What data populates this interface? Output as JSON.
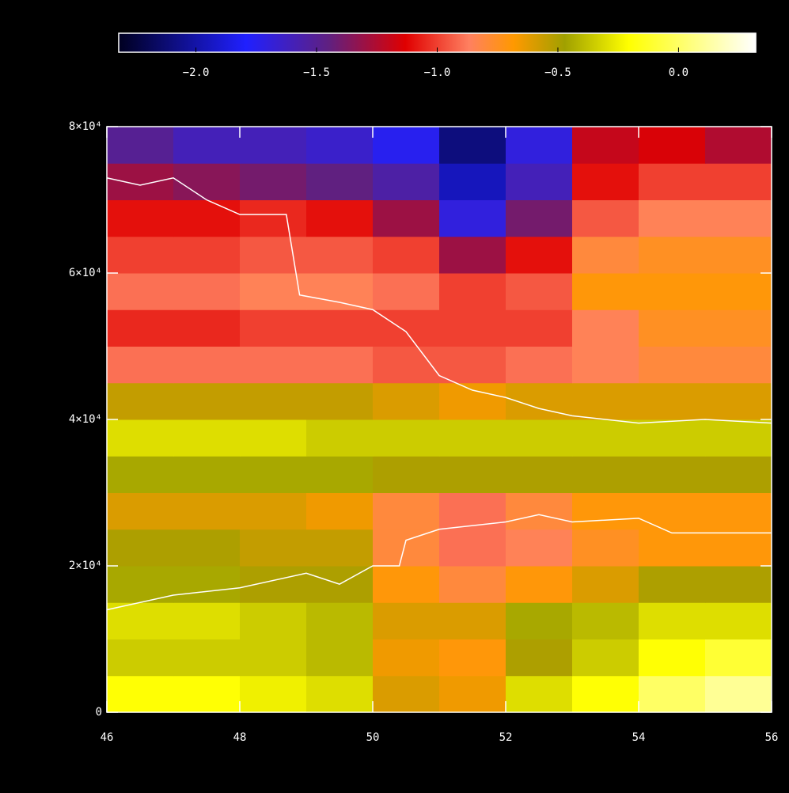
{
  "chart_data": {
    "type": "heatmap",
    "xlim": [
      46,
      56
    ],
    "ylim": [
      0,
      80000
    ],
    "xticks": [
      46,
      48,
      50,
      52,
      54,
      56
    ],
    "yticks": [
      0,
      {
        "value": 20000,
        "label": "2×10⁴"
      },
      {
        "value": 40000,
        "label": "4×10⁴"
      },
      {
        "value": 60000,
        "label": "6×10⁴"
      },
      {
        "value": 80000,
        "label": "8×10⁴"
      }
    ],
    "zlim": [
      -2.32,
      0.32
    ],
    "cticks": [
      {
        "value": -2,
        "label": "−2.0"
      },
      {
        "value": -1.5,
        "label": "−1.5"
      },
      {
        "value": -1,
        "label": "−1.0"
      },
      {
        "value": -0.5,
        "label": "−0.5"
      },
      {
        "value": 0,
        "label": "0.0"
      }
    ],
    "colorscale": [
      [
        0,
        "#000020"
      ],
      [
        0.2,
        "#2020ff"
      ],
      [
        0.33,
        "#602080"
      ],
      [
        0.45,
        "#e00000"
      ],
      [
        0.55,
        "#ff8060"
      ],
      [
        0.62,
        "#ff9900"
      ],
      [
        0.7,
        "#a0a000"
      ],
      [
        0.8,
        "#ffff00"
      ],
      [
        1,
        "#ffffff"
      ]
    ],
    "x_edges": [
      46,
      47,
      48,
      49,
      50,
      51,
      52,
      53,
      54,
      55,
      56
    ],
    "y_edges": [
      0,
      5000,
      10000,
      15000,
      20000,
      25000,
      30000,
      35000,
      40000,
      45000,
      50000,
      55000,
      60000,
      65000,
      70000,
      75000,
      80000
    ],
    "z": [
      [
        -0.2,
        -0.2,
        -0.25,
        -0.3,
        -0.6,
        -0.65,
        -0.3,
        -0.2,
        0.0,
        0.1
      ],
      [
        -0.35,
        -0.35,
        -0.35,
        -0.4,
        -0.65,
        -0.7,
        -0.5,
        -0.35,
        -0.2,
        -0.1
      ],
      [
        -0.3,
        -0.3,
        -0.35,
        -0.4,
        -0.6,
        -0.6,
        -0.45,
        -0.4,
        -0.3,
        -0.3
      ],
      [
        -0.45,
        -0.45,
        -0.5,
        -0.5,
        -0.7,
        -0.8,
        -0.7,
        -0.6,
        -0.5,
        -0.5
      ],
      [
        -0.5,
        -0.5,
        -0.55,
        -0.55,
        -0.8,
        -0.9,
        -0.85,
        -0.75,
        -0.7,
        -0.7
      ],
      [
        -0.6,
        -0.6,
        -0.6,
        -0.65,
        -0.8,
        -0.9,
        -0.8,
        -0.7,
        -0.7,
        -0.7
      ],
      [
        -0.45,
        -0.45,
        -0.45,
        -0.45,
        -0.5,
        -0.5,
        -0.5,
        -0.5,
        -0.5,
        -0.5
      ],
      [
        -0.3,
        -0.3,
        -0.3,
        -0.35,
        -0.35,
        -0.35,
        -0.35,
        -0.35,
        -0.35,
        -0.35
      ],
      [
        -0.55,
        -0.55,
        -0.55,
        -0.55,
        -0.6,
        -0.65,
        -0.6,
        -0.6,
        -0.6,
        -0.6
      ],
      [
        -0.9,
        -0.9,
        -0.9,
        -0.9,
        -0.95,
        -0.95,
        -0.9,
        -0.85,
        -0.8,
        -0.8
      ],
      [
        -1.05,
        -1.05,
        -1.0,
        -1.0,
        -1.0,
        -1.0,
        -1.0,
        -0.85,
        -0.75,
        -0.75
      ],
      [
        -0.9,
        -0.9,
        -0.85,
        -0.85,
        -0.9,
        -1.0,
        -0.95,
        -0.7,
        -0.7,
        -0.7
      ],
      [
        -1.0,
        -1.0,
        -0.95,
        -0.95,
        -1.0,
        -1.3,
        -1.1,
        -0.8,
        -0.75,
        -0.75
      ],
      [
        -1.1,
        -1.1,
        -1.05,
        -1.1,
        -1.3,
        -1.7,
        -1.4,
        -0.95,
        -0.85,
        -0.85
      ],
      [
        -1.3,
        -1.35,
        -1.4,
        -1.45,
        -1.55,
        -1.95,
        -1.6,
        -1.1,
        -1.0,
        -1.0
      ],
      [
        -1.5,
        -1.6,
        -1.6,
        -1.65,
        -1.75,
        -2.1,
        -1.7,
        -1.2,
        -1.15,
        -1.25
      ]
    ],
    "lines": [
      {
        "color": "#ffffff",
        "x": [
          46,
          46.5,
          47,
          47.5,
          48,
          48.7,
          48.9,
          49.5,
          50,
          50.5,
          51,
          51.5,
          52,
          52.5,
          53,
          54,
          55,
          56
        ],
        "y": [
          73000,
          72000,
          73000,
          70000,
          68000,
          68000,
          57000,
          56000,
          55000,
          52000,
          46000,
          44000,
          43000,
          41500,
          40500,
          39500,
          40000,
          39500
        ]
      },
      {
        "color": "#ffffff",
        "x": [
          46,
          47,
          48,
          49,
          49.5,
          50,
          50.4,
          50.5,
          51,
          52,
          52.5,
          53,
          54,
          54.5,
          55,
          56
        ],
        "y": [
          14000,
          16000,
          17000,
          19000,
          17500,
          20000,
          20000,
          23500,
          25000,
          26000,
          27000,
          26000,
          26500,
          24500,
          24500,
          24500
        ]
      }
    ]
  }
}
